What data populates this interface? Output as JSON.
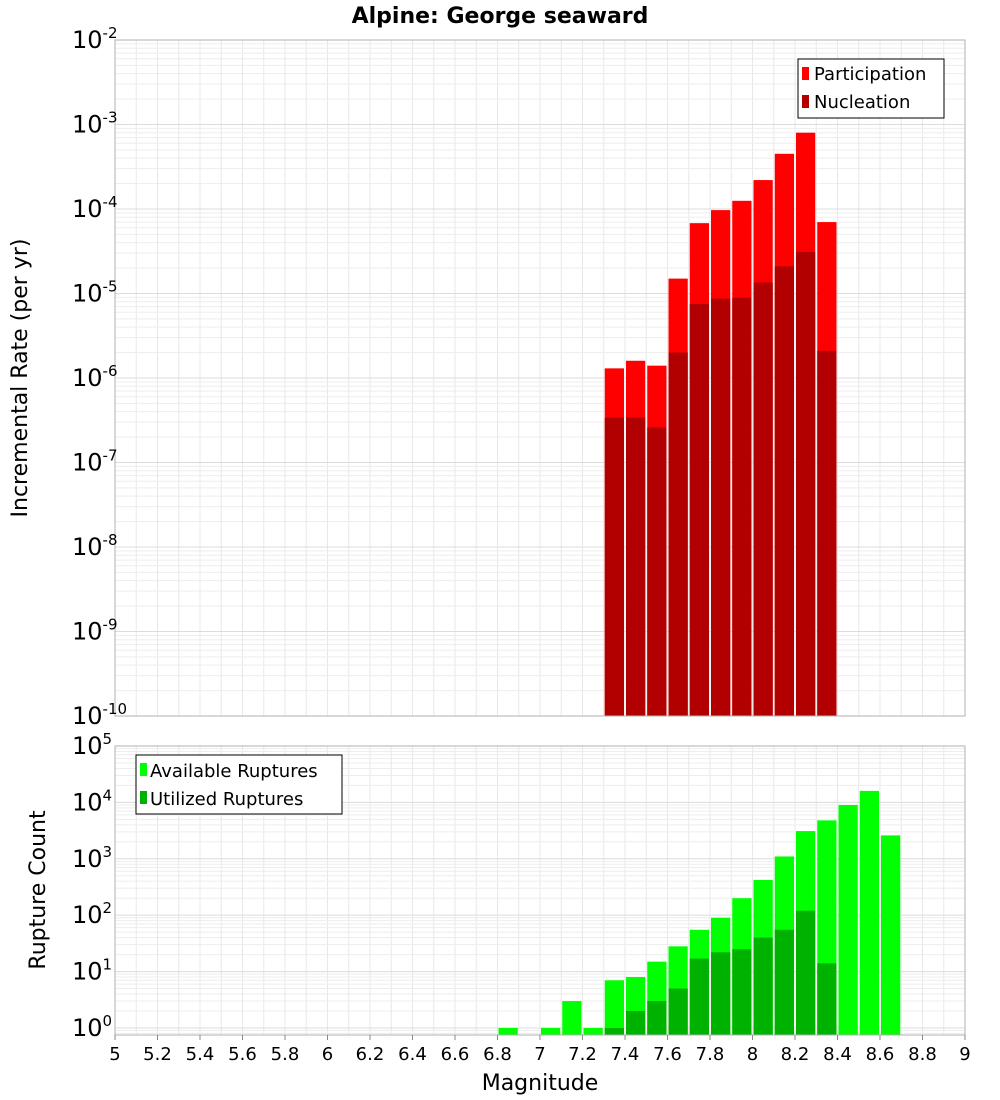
{
  "chart_data": [
    {
      "type": "bar",
      "title": "Alpine: George seaward",
      "ylabel": "Incremental Rate (per yr)",
      "yscale": "log",
      "ylim": [
        1e-10,
        0.01
      ],
      "xlim": [
        5,
        9
      ],
      "yticks": [
        {
          "base": "10",
          "exp": "-10"
        },
        {
          "base": "10",
          "exp": "-9"
        },
        {
          "base": "10",
          "exp": "-8"
        },
        {
          "base": "10",
          "exp": "-7"
        },
        {
          "base": "10",
          "exp": "-6"
        },
        {
          "base": "10",
          "exp": "-5"
        },
        {
          "base": "10",
          "exp": "-4"
        },
        {
          "base": "10",
          "exp": "-3"
        },
        {
          "base": "10",
          "exp": "-2"
        }
      ],
      "grid": true,
      "legend_position": "top-right",
      "series": [
        {
          "name": "Participation",
          "color": "#ff0000",
          "x": [
            7.35,
            7.45,
            7.55,
            7.65,
            7.75,
            7.85,
            7.95,
            8.05,
            8.15,
            8.25,
            8.35
          ],
          "values": [
            1.3e-06,
            1.6e-06,
            1.4e-06,
            1.5e-05,
            6.8e-05,
            9.7e-05,
            0.000125,
            0.00022,
            0.00045,
            0.0008,
            7e-05
          ]
        },
        {
          "name": "Nucleation",
          "color": "#b20000",
          "x": [
            7.35,
            7.45,
            7.55,
            7.65,
            7.75,
            7.85,
            7.95,
            8.05,
            8.15,
            8.25,
            8.35
          ],
          "values": [
            3.4e-07,
            3.4e-07,
            2.6e-07,
            2e-06,
            7.5e-06,
            8.7e-06,
            8.9e-06,
            1.35e-05,
            2.1e-05,
            3.1e-05,
            2.1e-06
          ]
        }
      ]
    },
    {
      "type": "bar",
      "xlabel": "Magnitude",
      "ylabel": "Rupture Count",
      "yscale": "log",
      "ylim": [
        0.75,
        100000.0
      ],
      "xlim": [
        5,
        9
      ],
      "xticks": [
        "5",
        "5.2",
        "5.4",
        "5.6",
        "5.8",
        "6",
        "6.2",
        "6.4",
        "6.6",
        "6.8",
        "7",
        "7.2",
        "7.4",
        "7.6",
        "7.8",
        "8",
        "8.2",
        "8.4",
        "8.6",
        "8.8",
        "9"
      ],
      "yticks": [
        {
          "base": "10",
          "exp": "0"
        },
        {
          "base": "10",
          "exp": "1"
        },
        {
          "base": "10",
          "exp": "2"
        },
        {
          "base": "10",
          "exp": "3"
        },
        {
          "base": "10",
          "exp": "4"
        },
        {
          "base": "10",
          "exp": "5"
        }
      ],
      "grid": true,
      "legend_position": "top-left",
      "series": [
        {
          "name": "Available Ruptures",
          "color": "#00ff00",
          "x": [
            6.85,
            7.05,
            7.15,
            7.25,
            7.35,
            7.45,
            7.55,
            7.65,
            7.75,
            7.85,
            7.95,
            8.05,
            8.15,
            8.25,
            8.35,
            8.45,
            8.55,
            8.65
          ],
          "values": [
            1,
            1,
            3,
            1,
            7,
            8,
            15,
            28,
            55,
            90,
            200,
            420,
            1100,
            3100,
            4800,
            9000,
            16000,
            2600
          ]
        },
        {
          "name": "Utilized Ruptures",
          "color": "#00b200",
          "x": [
            7.35,
            7.45,
            7.55,
            7.65,
            7.75,
            7.85,
            7.95,
            8.05,
            8.15,
            8.25,
            8.35
          ],
          "values": [
            1,
            2,
            3,
            5,
            17,
            22,
            25,
            40,
            55,
            120,
            14
          ]
        }
      ]
    }
  ]
}
